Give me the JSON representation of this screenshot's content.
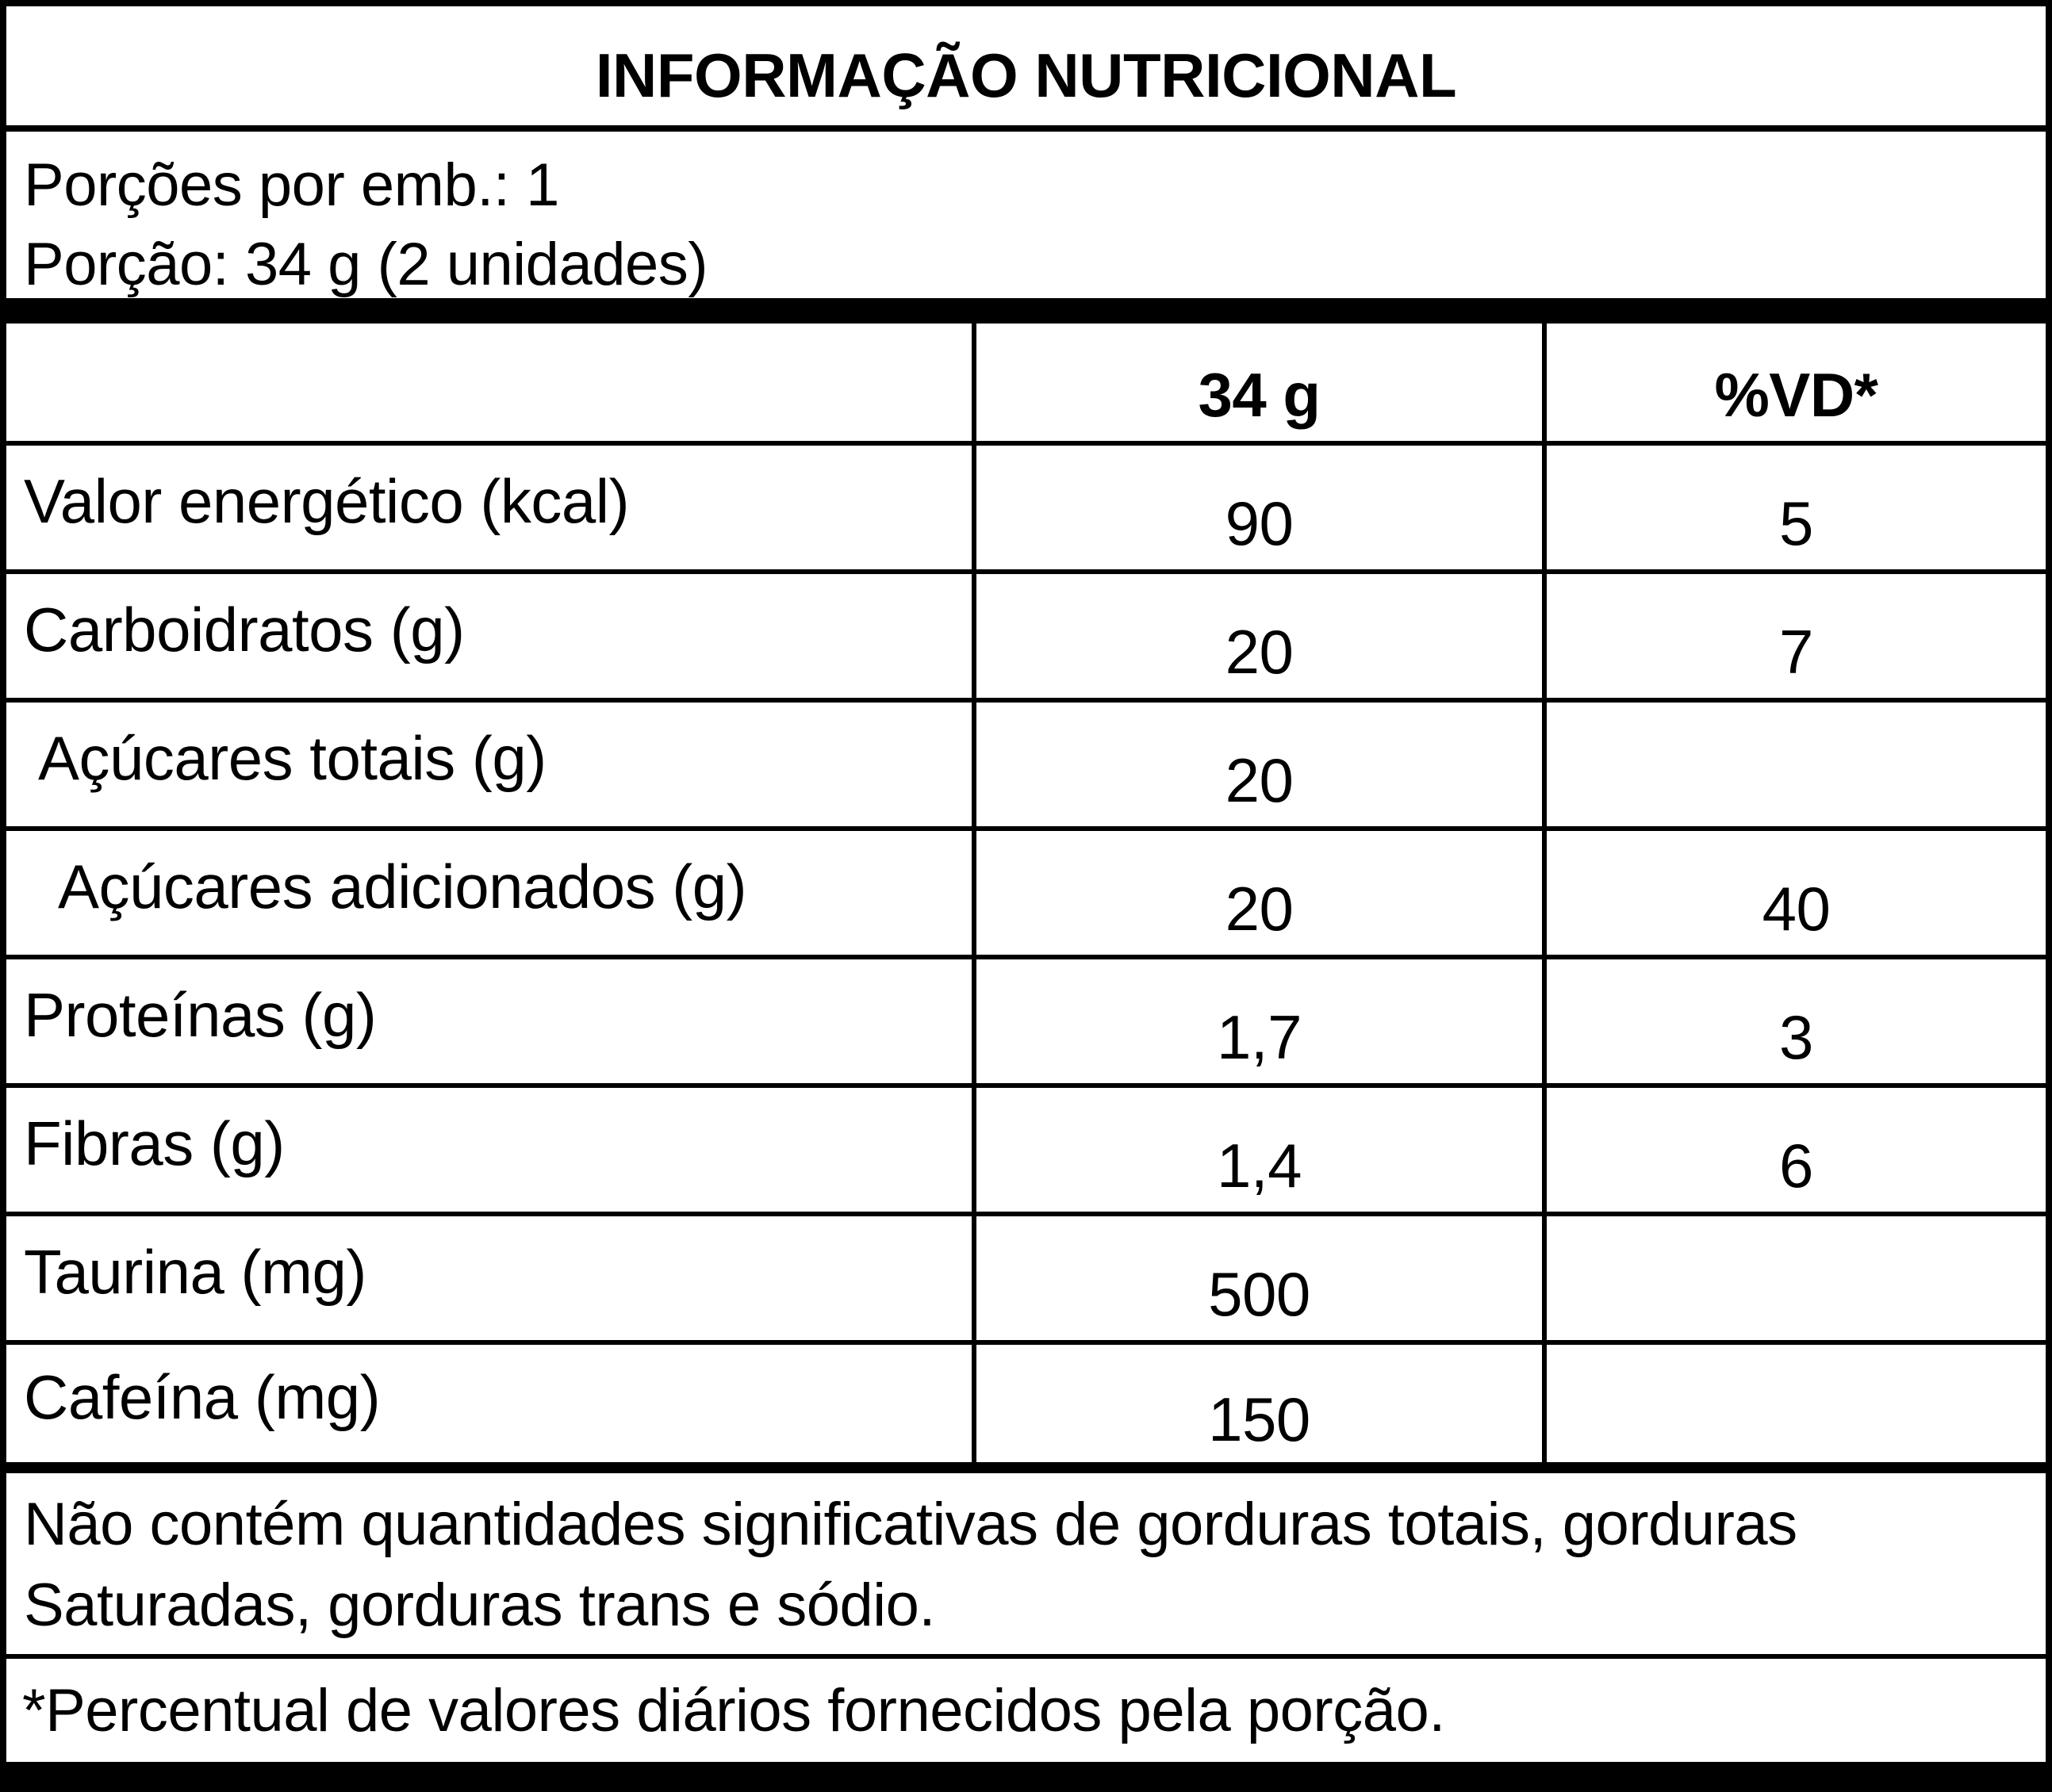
{
  "title": "INFORMAÇÃO NUTRICIONAL",
  "serving": {
    "servings_per_package": "Porções por emb.: 1",
    "serving_size": "Porção: 34 g (2 unidades)"
  },
  "table": {
    "header": {
      "amount_label": "34 g",
      "dv_label": "%VD*"
    },
    "rows": [
      {
        "label": "Valor energético (kcal)",
        "amount": "90",
        "dv": "5"
      },
      {
        "label": "Carboidratos (g)",
        "amount": "20",
        "dv": "7"
      },
      {
        "label": "Açúcares totais (g)",
        "amount": "20",
        "dv": ""
      },
      {
        "label": "Açúcares adicionados (g)",
        "amount": "20",
        "dv": "40"
      },
      {
        "label": "Proteínas (g)",
        "amount": "1,7",
        "dv": "3"
      },
      {
        "label": "Fibras (g)",
        "amount": "1,4",
        "dv": "6"
      },
      {
        "label": "Taurina (mg)",
        "amount": "500",
        "dv": ""
      },
      {
        "label": "Cafeína (mg)",
        "amount": "150",
        "dv": ""
      }
    ]
  },
  "footers": {
    "no_significant_lines": [
      "Não contém quantidades significativas de gorduras totais, gorduras",
      "Saturadas, gorduras trans e sódio."
    ],
    "dv_note": "*Percentual de valores diários fornecidos pela porção."
  },
  "colors": {
    "ink": "#000000",
    "paper": "#ffffff"
  }
}
